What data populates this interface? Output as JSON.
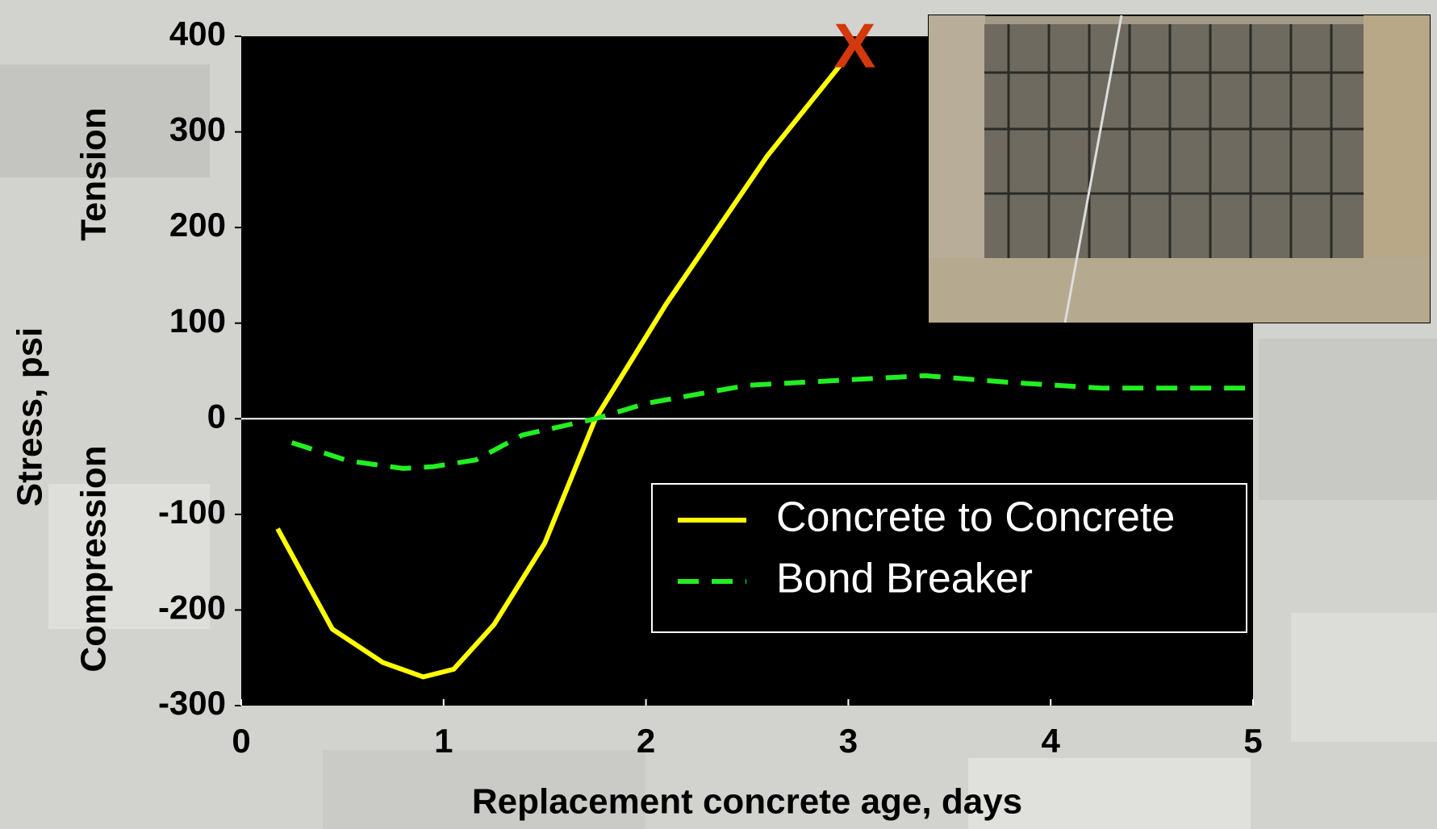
{
  "chart_data": {
    "type": "line",
    "x_label": "Replacement concrete age, days",
    "y_label": "Stress, psi",
    "y_upper_label": "Tension",
    "y_lower_label": "Compression",
    "xlim": [
      0,
      5
    ],
    "xticks": [
      0,
      1,
      2,
      3,
      4,
      5
    ],
    "ylim": [
      -300,
      400
    ],
    "yticks": [
      -300,
      -200,
      -100,
      0,
      100,
      200,
      300,
      400
    ],
    "legend": "lower right",
    "series": [
      {
        "name": "Concrete to Concrete",
        "color": "#ffff00",
        "style": "solid",
        "x": [
          0.18,
          0.45,
          0.7,
          0.9,
          1.05,
          1.25,
          1.5,
          1.75,
          2.1,
          2.6,
          2.98
        ],
        "values": [
          -115,
          -220,
          -255,
          -270,
          -262,
          -215,
          -130,
          0,
          120,
          275,
          375
        ]
      },
      {
        "name": "Bond Breaker",
        "color": "#22ee22",
        "style": "dashed",
        "x": [
          0.25,
          0.53,
          0.8,
          0.95,
          1.16,
          1.39,
          1.75,
          2.0,
          2.5,
          3.38,
          3.8,
          4.25,
          5.0
        ],
        "values": [
          -25,
          -44,
          -52,
          -50,
          -43,
          -17,
          0,
          16,
          35,
          45,
          38,
          32,
          32
        ]
      }
    ],
    "annotations": [
      {
        "text": "X",
        "x": 3.0,
        "y": 385,
        "color": "#d4380d"
      }
    ]
  }
}
